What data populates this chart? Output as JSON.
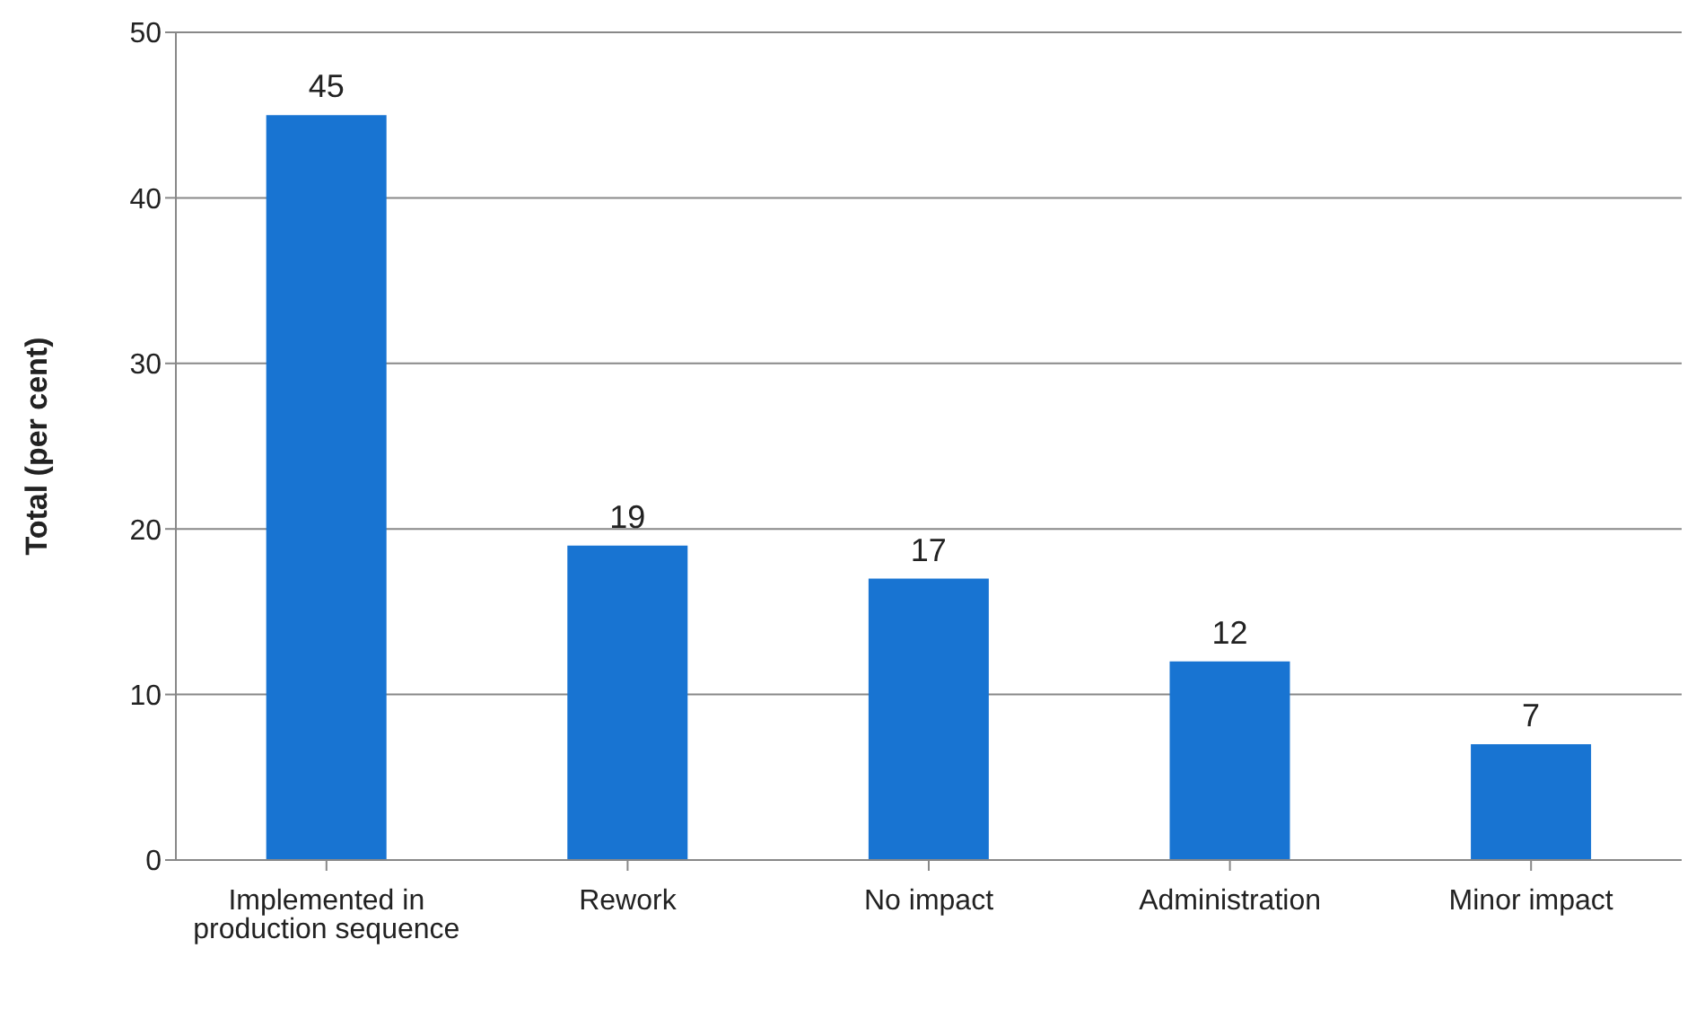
{
  "chart_data": {
    "type": "bar",
    "ylabel": "Total (per cent)",
    "categories": [
      "Implemented in production sequence",
      "Rework",
      "No impact",
      "Administration",
      "Minor impact"
    ],
    "values": [
      45,
      19,
      17,
      12,
      7
    ],
    "color": "#1874d2",
    "ylim": [
      0,
      50
    ],
    "yticks": [
      0,
      10,
      20,
      30,
      40,
      50
    ],
    "grid": "y",
    "data_labels": true
  }
}
